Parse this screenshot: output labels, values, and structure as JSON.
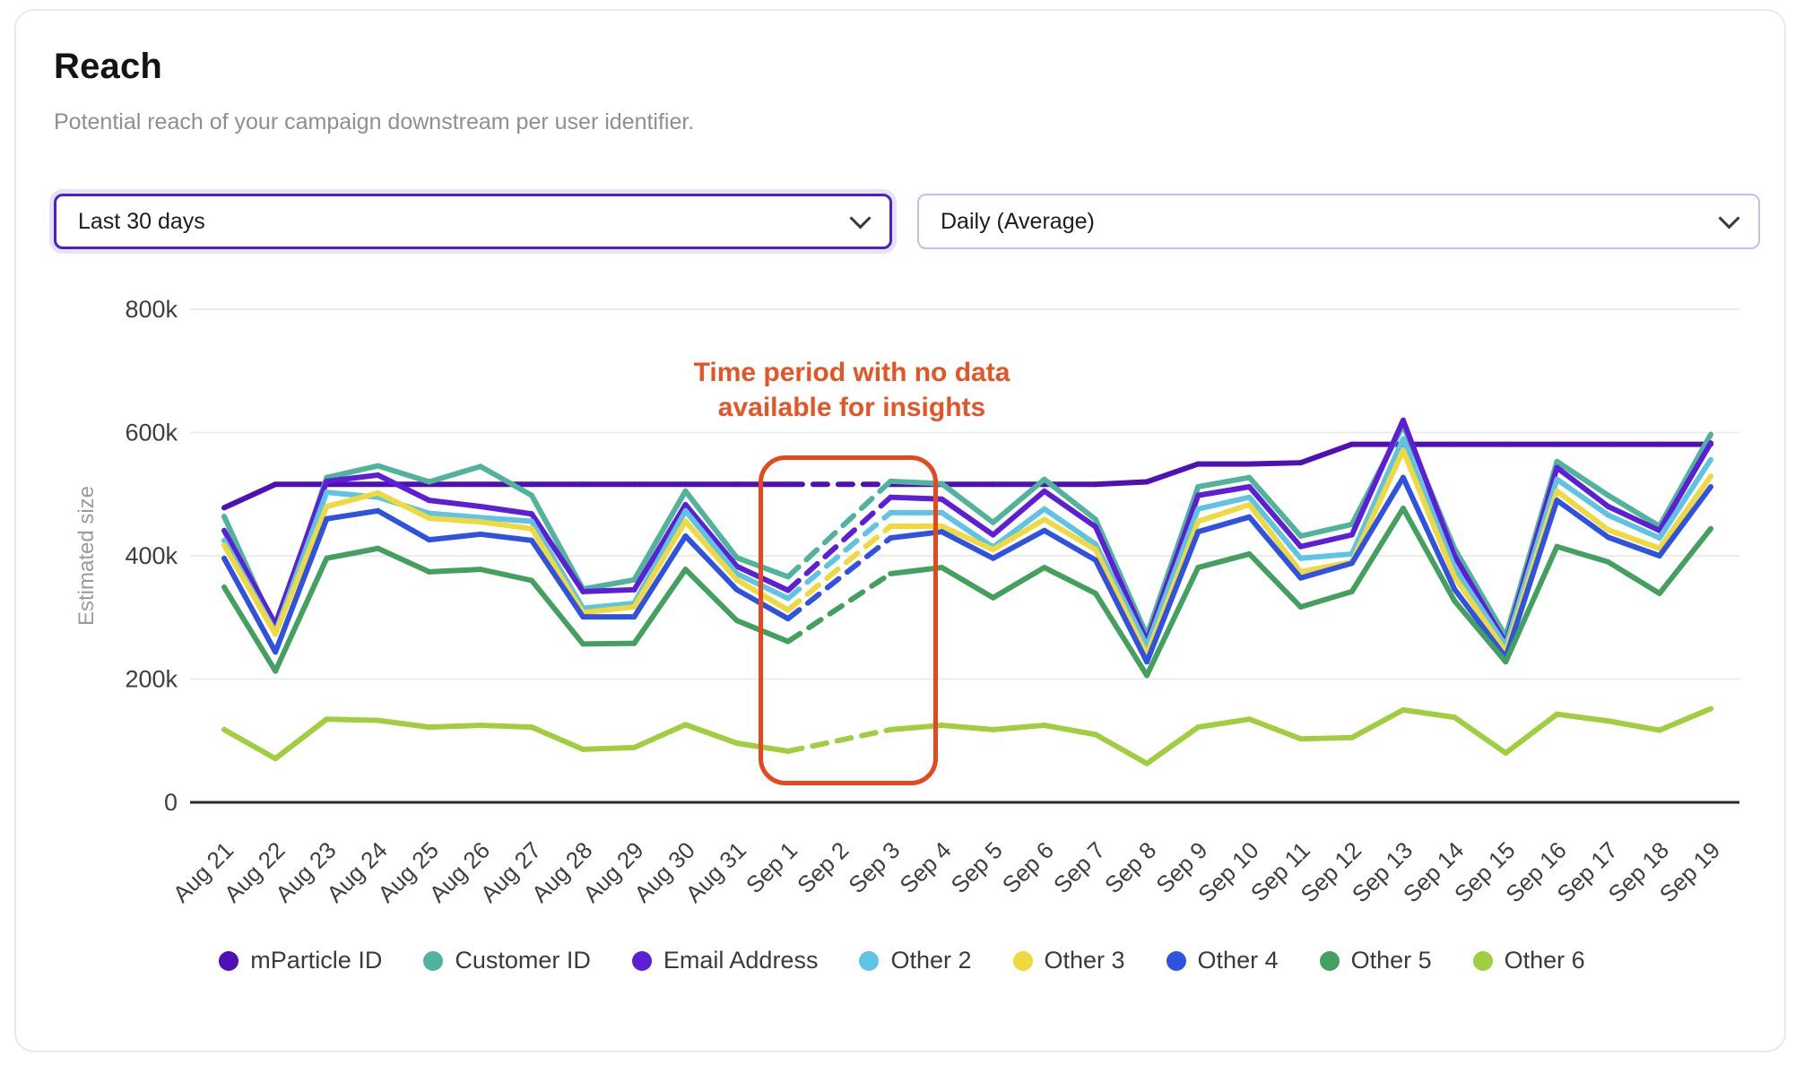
{
  "header": {
    "title": "Reach",
    "subtitle": "Potential reach of your campaign downstream per user identifier."
  },
  "filters": {
    "date_range": {
      "value": "Last 30 days",
      "icon": "chevron-down-icon"
    },
    "granularity": {
      "value": "Daily (Average)",
      "icon": "chevron-down-icon"
    }
  },
  "annotation": {
    "line1": "Time period with no data",
    "line2": "available for insights",
    "text_color": "#e65325",
    "box_color": "#e8461b"
  },
  "chart_data": {
    "type": "line",
    "title": "",
    "xlabel": "",
    "ylabel": "Estimated size",
    "ylim": [
      0,
      800000
    ],
    "grid": "horizontal",
    "legend_position": "bottom",
    "values_unit": "thousands",
    "missing_x": [
      "Sep 2"
    ],
    "yticks": [
      {
        "value": 0,
        "label": "0"
      },
      {
        "value": 200000,
        "label": "200k"
      },
      {
        "value": 400000,
        "label": "400k"
      },
      {
        "value": 600000,
        "label": "600k"
      },
      {
        "value": 800000,
        "label": "800k"
      }
    ],
    "x": [
      "Aug 21",
      "Aug 22",
      "Aug 23",
      "Aug 24",
      "Aug 25",
      "Aug 26",
      "Aug 27",
      "Aug 28",
      "Aug 29",
      "Aug 30",
      "Aug 31",
      "Sep 1",
      "Sep 2",
      "Sep 3",
      "Sep 4",
      "Sep 5",
      "Sep 6",
      "Sep 7",
      "Sep 8",
      "Sep 9",
      "Sep 10",
      "Sep 11",
      "Sep 12",
      "Sep 13",
      "Sep 14",
      "Sep 15",
      "Sep 16",
      "Sep 17",
      "Sep 18",
      "Sep 19"
    ],
    "series": [
      {
        "name": "mParticle ID",
        "color": "#4f10b5",
        "values": [
          478,
          516,
          516,
          516,
          516,
          516,
          516,
          516,
          516,
          516,
          516,
          516,
          null,
          516,
          516,
          516,
          516,
          516,
          520,
          549,
          549,
          551,
          581,
          581,
          581,
          581,
          581,
          581,
          581,
          581
        ]
      },
      {
        "name": "Customer ID",
        "color": "#50b39b",
        "values": [
          464,
          280,
          527,
          546,
          520,
          545,
          498,
          346,
          361,
          505,
          397,
          366,
          null,
          521,
          517,
          454,
          524,
          459,
          271,
          512,
          527,
          432,
          451,
          612,
          412,
          269,
          553,
          498,
          448,
          597
        ]
      },
      {
        "name": "Email Address",
        "color": "#5c1fd6",
        "values": [
          441,
          289,
          521,
          531,
          490,
          480,
          468,
          342,
          345,
          483,
          383,
          344,
          null,
          495,
          492,
          434,
          505,
          447,
          261,
          498,
          512,
          415,
          434,
          620,
          400,
          258,
          543,
          480,
          441,
          583
        ]
      },
      {
        "name": "Other 2",
        "color": "#5fc4e4",
        "values": [
          425,
          276,
          503,
          495,
          469,
          462,
          456,
          315,
          323,
          473,
          371,
          331,
          null,
          470,
          470,
          414,
          476,
          419,
          254,
          476,
          495,
          396,
          403,
          590,
          381,
          254,
          524,
          466,
          429,
          556
        ]
      },
      {
        "name": "Other 3",
        "color": "#efd93f",
        "values": [
          417,
          273,
          480,
          502,
          461,
          455,
          444,
          308,
          317,
          456,
          361,
          312,
          null,
          448,
          448,
          410,
          459,
          410,
          239,
          456,
          483,
          374,
          390,
          571,
          366,
          244,
          505,
          442,
          412,
          529
        ]
      },
      {
        "name": "Other 4",
        "color": "#2f52e0",
        "values": [
          396,
          244,
          460,
          473,
          426,
          435,
          425,
          301,
          301,
          432,
          345,
          298,
          null,
          429,
          439,
          396,
          441,
          393,
          228,
          439,
          463,
          364,
          388,
          527,
          346,
          235,
          490,
          430,
          400,
          512
        ]
      },
      {
        "name": "Other 5",
        "color": "#43a05f",
        "values": [
          349,
          213,
          396,
          412,
          374,
          378,
          360,
          257,
          258,
          378,
          295,
          261,
          null,
          371,
          381,
          332,
          381,
          339,
          206,
          381,
          403,
          317,
          342,
          477,
          327,
          228,
          415,
          390,
          339,
          444
        ]
      },
      {
        "name": "Other 6",
        "color": "#a0ce3e",
        "values": [
          118,
          71,
          135,
          133,
          122,
          125,
          122,
          86,
          89,
          126,
          96,
          83,
          null,
          118,
          125,
          118,
          125,
          110,
          63,
          122,
          135,
          103,
          105,
          150,
          138,
          80,
          143,
          132,
          117,
          152
        ]
      }
    ]
  }
}
